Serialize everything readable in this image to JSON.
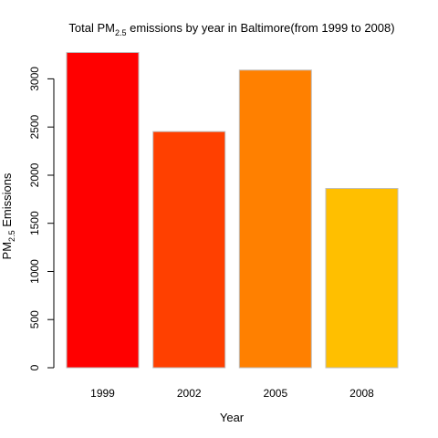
{
  "chart_data": {
    "type": "bar",
    "title": {
      "prefix": "Total PM",
      "subscript": "2.5",
      "suffix": " emissions by year  in Baltimore(from 1999 to 2008)"
    },
    "xlabel": "Year",
    "ylabel": {
      "prefix": "PM",
      "subscript": "2.5",
      "suffix": " Emissions"
    },
    "categories": [
      "1999",
      "2002",
      "2005",
      "2008"
    ],
    "values": [
      3274,
      2453,
      3091,
      1862
    ],
    "colors": [
      "#FF0000",
      "#FF4000",
      "#FF8000",
      "#FFBF00"
    ],
    "bar_border_color": "#BEBEBE",
    "y_ticks": [
      0,
      500,
      1000,
      1500,
      2000,
      2500,
      3000
    ],
    "ylim": [
      0,
      3274
    ],
    "grid": false,
    "legend": "none"
  }
}
